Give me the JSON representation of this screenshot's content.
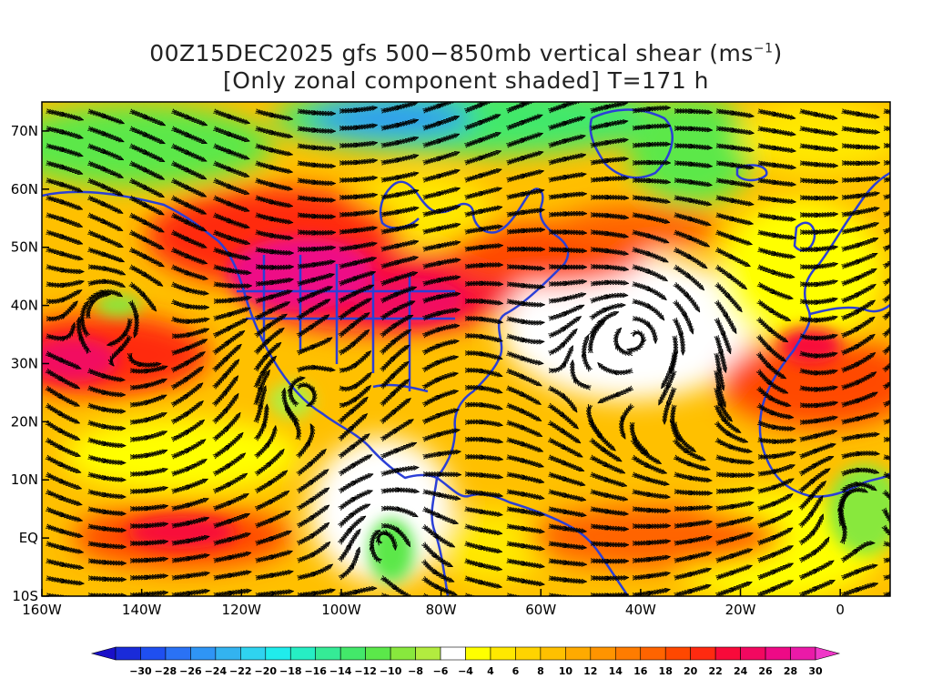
{
  "title": {
    "line1": "00Z15DEC2025 gfs 500−850mb vertical shear (ms",
    "line1_sup": "−1",
    "line1_end": ")",
    "line2": "[Only zonal component shaded] T=171 h"
  },
  "map": {
    "lon_range": [
      -160,
      10
    ],
    "lat_range": [
      -10,
      75
    ],
    "lon_ticks": [
      "160W",
      "140W",
      "120W",
      "100W",
      "80W",
      "60W",
      "40W",
      "20W",
      "0"
    ],
    "lat_ticks": [
      "70N",
      "60N",
      "50N",
      "40N",
      "30N",
      "20N",
      "10N",
      "EQ",
      "10S"
    ],
    "coast_color": "#2b3fd6",
    "streamline_color": "#000000"
  },
  "colorbar": {
    "labels": [
      "-30",
      "-28",
      "-26",
      "-24",
      "-22",
      "-20",
      "-18",
      "-16",
      "-14",
      "-12",
      "-10",
      "-8",
      "-6",
      "-4",
      "4",
      "6",
      "8",
      "10",
      "12",
      "14",
      "16",
      "18",
      "20",
      "22",
      "24",
      "26",
      "28",
      "30"
    ],
    "colors": [
      "#1a2bd9",
      "#1f4ff0",
      "#2a72f5",
      "#2f95f5",
      "#33b3f0",
      "#2fd3f0",
      "#20ecec",
      "#26eec4",
      "#35eb96",
      "#43e86a",
      "#5be84a",
      "#88e83d",
      "#b2ec3f",
      "#ffffff",
      "#ffff00",
      "#ffe800",
      "#ffd400",
      "#ffc000",
      "#ffaa00",
      "#ff9400",
      "#ff7c00",
      "#ff6400",
      "#ff4800",
      "#ff2a10",
      "#f80a3a",
      "#f20860",
      "#ee0a86",
      "#ea1aa8"
    ]
  }
}
